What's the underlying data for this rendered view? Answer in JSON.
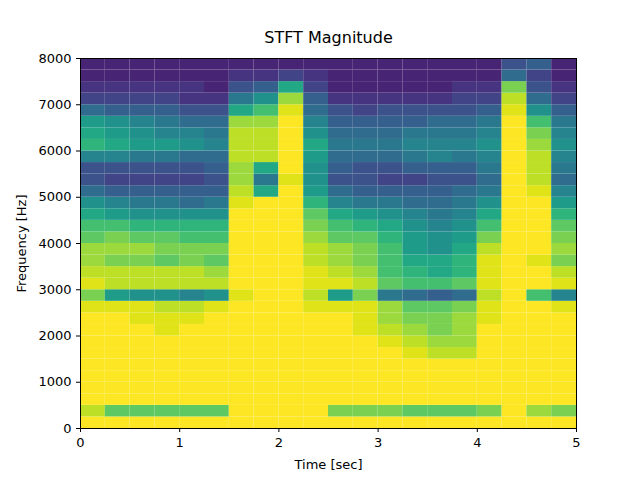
{
  "chart_data": {
    "type": "heatmap",
    "title": "STFT Magnitude",
    "x_label": "Time [sec]",
    "y_label": "Frequency [Hz]",
    "color": "viridis",
    "color_range": [
      0,
      1
    ],
    "xlim": [
      0,
      5
    ],
    "ylim": [
      0,
      8000
    ],
    "xticks": [
      0,
      1,
      2,
      3,
      4,
      5
    ],
    "yticks": [
      0,
      1000,
      2000,
      3000,
      4000,
      5000,
      6000,
      7000,
      8000
    ],
    "x_edges": [
      0,
      0.25,
      0.5,
      0.75,
      1,
      1.25,
      1.5,
      1.75,
      2,
      2.25,
      2.5,
      2.75,
      3,
      3.25,
      3.5,
      3.75,
      4,
      4.25,
      4.5,
      4.75,
      5
    ],
    "y_edges": [
      0,
      250,
      500,
      750,
      1000,
      1250,
      1500,
      1750,
      2000,
      2250,
      2500,
      2750,
      3000,
      3250,
      3500,
      3750,
      4000,
      4250,
      4500,
      4750,
      5000,
      5250,
      5500,
      5750,
      6000,
      6250,
      6500,
      6750,
      7000,
      7250,
      7500,
      7750,
      8000
    ],
    "cells": [
      [
        1,
        1,
        1,
        1,
        1,
        1,
        1,
        1,
        1,
        1,
        1,
        1,
        1,
        1,
        1,
        1,
        1,
        1,
        1,
        1
      ],
      [
        0.9,
        0.75,
        0.75,
        0.75,
        0.75,
        0.75,
        1,
        1,
        1,
        1,
        0.8,
        0.8,
        0.8,
        0.75,
        0.75,
        0.75,
        0.8,
        1,
        0.85,
        0.8
      ],
      [
        1,
        1,
        1,
        1,
        1,
        1,
        1,
        1,
        1,
        1,
        1,
        1,
        1,
        1,
        1,
        1,
        1,
        1,
        1,
        1
      ],
      [
        1,
        1,
        1,
        1,
        1,
        1,
        1,
        1,
        1,
        1,
        1,
        1,
        1,
        1,
        1,
        1,
        1,
        1,
        1,
        1
      ],
      [
        1,
        1,
        1,
        1,
        1,
        1,
        1,
        1,
        1,
        1,
        1,
        1,
        1,
        1,
        1,
        1,
        1,
        1,
        1,
        1
      ],
      [
        1,
        1,
        1,
        1,
        1,
        1,
        1,
        1,
        1,
        1,
        1,
        1,
        1,
        1,
        1,
        1,
        1,
        1,
        1,
        1
      ],
      [
        1,
        1,
        1,
        1,
        1,
        1,
        1,
        1,
        1,
        1,
        1,
        1,
        1,
        0.95,
        0.9,
        0.9,
        1,
        1,
        1,
        1
      ],
      [
        1,
        1,
        1,
        1,
        1,
        1,
        1,
        1,
        1,
        1,
        1,
        1,
        0.95,
        0.9,
        0.85,
        0.85,
        1,
        1,
        1,
        1
      ],
      [
        1,
        1,
        1,
        0.95,
        1,
        1,
        1,
        1,
        1,
        1,
        1,
        0.95,
        0.9,
        0.85,
        0.8,
        0.85,
        1,
        1,
        1,
        1
      ],
      [
        1,
        1,
        0.95,
        0.95,
        0.95,
        1,
        1,
        1,
        1,
        1,
        1,
        0.95,
        0.85,
        0.8,
        0.8,
        0.85,
        0.95,
        1,
        1,
        1
      ],
      [
        0.95,
        0.95,
        0.95,
        0.9,
        0.9,
        0.95,
        1,
        1,
        1,
        0.95,
        0.95,
        0.95,
        0.85,
        0.75,
        0.75,
        0.8,
        0.95,
        1,
        1,
        0.95
      ],
      [
        0.8,
        0.55,
        0.5,
        0.5,
        0.45,
        0.5,
        0.95,
        1,
        1,
        0.9,
        0.55,
        0.8,
        0.4,
        0.35,
        0.3,
        0.35,
        0.9,
        1,
        0.7,
        0.45
      ],
      [
        0.95,
        0.9,
        0.9,
        0.9,
        0.9,
        0.9,
        1,
        1,
        1,
        0.95,
        0.95,
        0.9,
        0.75,
        0.7,
        0.7,
        0.75,
        0.95,
        1,
        1,
        0.95
      ],
      [
        0.9,
        0.9,
        0.9,
        0.9,
        0.9,
        0.85,
        1,
        1,
        1,
        0.95,
        0.9,
        0.85,
        0.7,
        0.65,
        0.6,
        0.65,
        0.95,
        1,
        1,
        0.9
      ],
      [
        0.85,
        0.8,
        0.8,
        0.75,
        0.8,
        0.75,
        1,
        1,
        1,
        0.9,
        0.85,
        0.8,
        0.7,
        0.6,
        0.6,
        0.65,
        0.95,
        1,
        0.95,
        0.8
      ],
      [
        0.85,
        0.85,
        0.85,
        0.8,
        0.8,
        0.8,
        1,
        1,
        1,
        0.9,
        0.85,
        0.8,
        0.7,
        0.55,
        0.5,
        0.6,
        0.9,
        1,
        1,
        0.85
      ],
      [
        0.75,
        0.8,
        0.75,
        0.75,
        0.7,
        0.7,
        1,
        1,
        1,
        0.85,
        0.75,
        0.75,
        0.65,
        0.55,
        0.5,
        0.55,
        0.8,
        1,
        1,
        0.8
      ],
      [
        0.7,
        0.7,
        0.65,
        0.65,
        0.65,
        0.65,
        1,
        1,
        1,
        0.8,
        0.7,
        0.65,
        0.6,
        0.5,
        0.45,
        0.5,
        0.7,
        1,
        1,
        0.75
      ],
      [
        0.6,
        0.55,
        0.5,
        0.5,
        0.5,
        0.5,
        1,
        1,
        1,
        0.75,
        0.6,
        0.55,
        0.5,
        0.45,
        0.4,
        0.45,
        0.6,
        1,
        1,
        0.65
      ],
      [
        0.5,
        0.45,
        0.4,
        0.4,
        0.35,
        0.4,
        0.95,
        1,
        1,
        0.65,
        0.45,
        0.4,
        0.4,
        0.35,
        0.35,
        0.4,
        0.5,
        1,
        1,
        0.55
      ],
      [
        0.35,
        0.3,
        0.3,
        0.3,
        0.3,
        0.3,
        0.9,
        0.6,
        1,
        0.55,
        0.35,
        0.3,
        0.3,
        0.3,
        0.3,
        0.35,
        0.4,
        1,
        0.95,
        0.45
      ],
      [
        0.25,
        0.2,
        0.2,
        0.2,
        0.2,
        0.25,
        0.85,
        0.4,
        0.95,
        0.5,
        0.25,
        0.25,
        0.2,
        0.2,
        0.25,
        0.25,
        0.35,
        1,
        0.9,
        0.35
      ],
      [
        0.25,
        0.25,
        0.25,
        0.25,
        0.25,
        0.3,
        0.85,
        0.6,
        1,
        0.5,
        0.3,
        0.25,
        0.25,
        0.3,
        0.3,
        0.3,
        0.4,
        1,
        0.9,
        0.4
      ],
      [
        0.45,
        0.45,
        0.4,
        0.4,
        0.35,
        0.35,
        0.9,
        0.9,
        1,
        0.55,
        0.35,
        0.35,
        0.35,
        0.4,
        0.45,
        0.4,
        0.45,
        1,
        0.9,
        0.45
      ],
      [
        0.65,
        0.6,
        0.55,
        0.55,
        0.5,
        0.45,
        0.9,
        0.9,
        1,
        0.6,
        0.4,
        0.4,
        0.4,
        0.45,
        0.45,
        0.45,
        0.5,
        1,
        0.85,
        0.5
      ],
      [
        0.6,
        0.55,
        0.5,
        0.45,
        0.45,
        0.4,
        0.9,
        0.9,
        1,
        0.5,
        0.35,
        0.35,
        0.35,
        0.4,
        0.4,
        0.4,
        0.45,
        1,
        0.8,
        0.45
      ],
      [
        0.55,
        0.5,
        0.45,
        0.4,
        0.35,
        0.35,
        0.85,
        0.85,
        1,
        0.45,
        0.3,
        0.3,
        0.3,
        0.3,
        0.35,
        0.35,
        0.4,
        1,
        0.7,
        0.4
      ],
      [
        0.35,
        0.3,
        0.3,
        0.3,
        0.25,
        0.25,
        0.6,
        0.7,
        0.95,
        0.35,
        0.25,
        0.2,
        0.25,
        0.25,
        0.25,
        0.25,
        0.3,
        0.95,
        0.5,
        0.3
      ],
      [
        0.2,
        0.2,
        0.2,
        0.2,
        0.15,
        0.15,
        0.4,
        0.5,
        0.85,
        0.3,
        0.15,
        0.15,
        0.15,
        0.15,
        0.15,
        0.2,
        0.2,
        0.9,
        0.35,
        0.2
      ],
      [
        0.15,
        0.15,
        0.15,
        0.15,
        0.15,
        0.1,
        0.25,
        0.3,
        0.6,
        0.2,
        0.1,
        0.1,
        0.1,
        0.1,
        0.1,
        0.15,
        0.15,
        0.8,
        0.25,
        0.15
      ],
      [
        0.1,
        0.1,
        0.1,
        0.1,
        0.1,
        0.1,
        0.15,
        0.15,
        0.2,
        0.15,
        0.1,
        0.1,
        0.1,
        0.1,
        0.1,
        0.1,
        0.1,
        0.35,
        0.2,
        0.1
      ],
      [
        0.1,
        0.1,
        0.1,
        0.1,
        0.1,
        0.1,
        0.1,
        0.1,
        0.1,
        0.1,
        0.1,
        0.1,
        0.1,
        0.1,
        0.1,
        0.1,
        0.1,
        0.25,
        0.3,
        0.1
      ]
    ]
  }
}
